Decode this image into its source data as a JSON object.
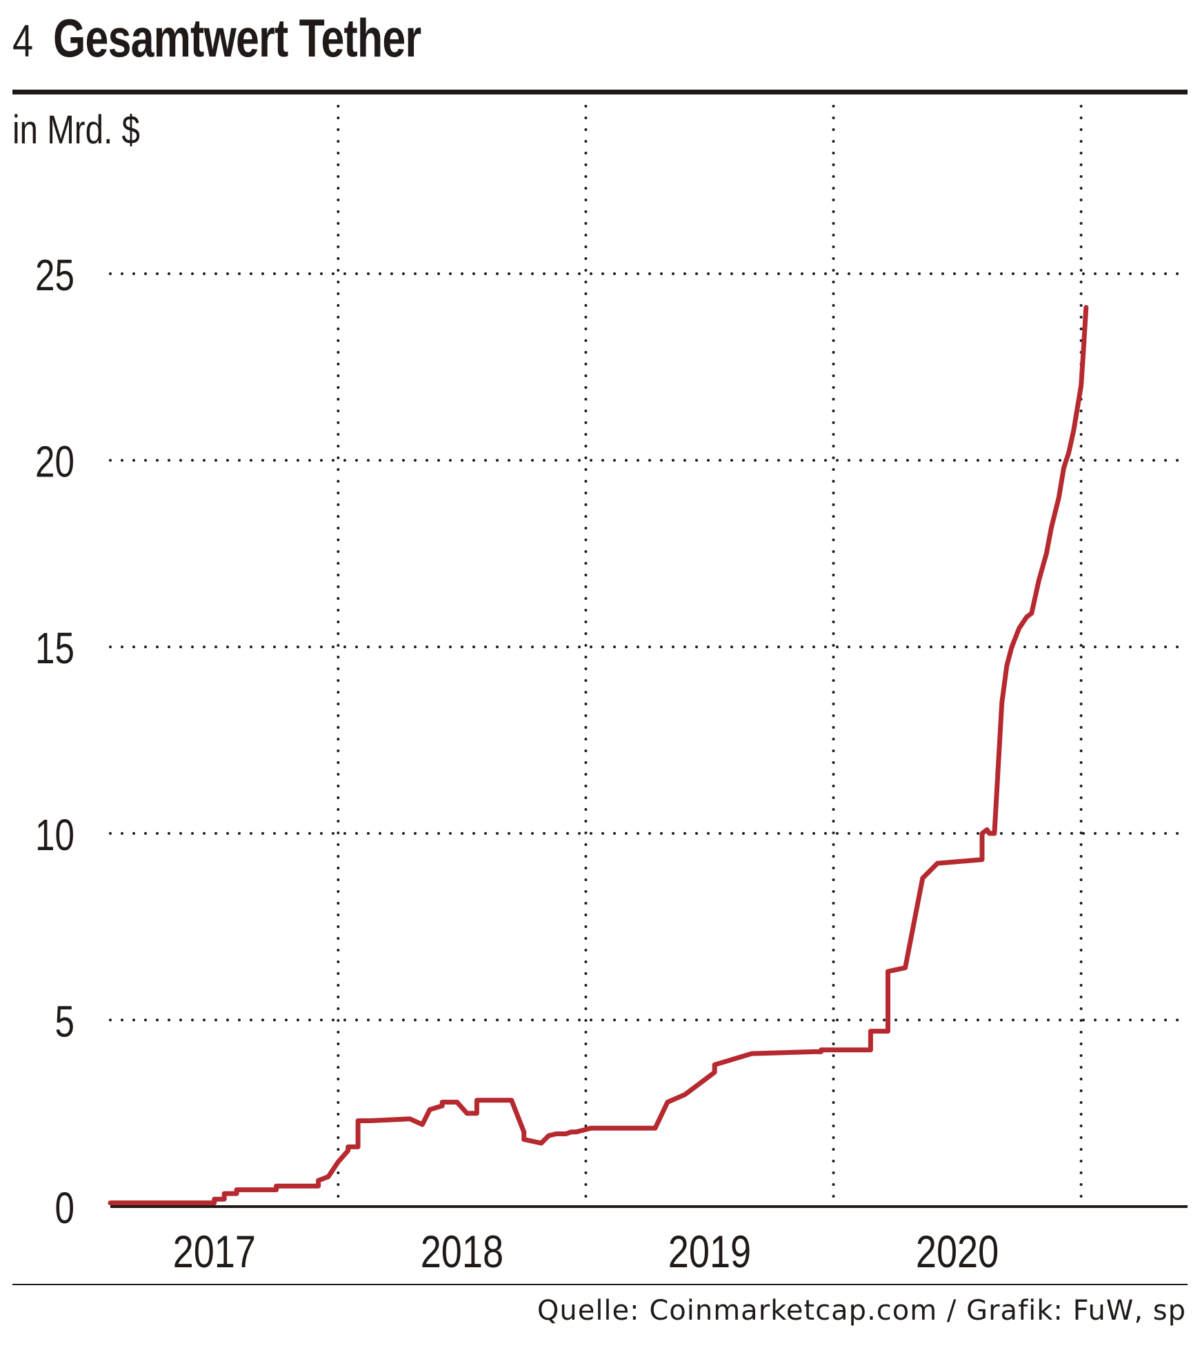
{
  "header": {
    "figure_number": "4",
    "title": "Gesamtwert Tether"
  },
  "footer": {
    "source": "Quelle: Coinmarketcap.com / Grafik: FuW, sp"
  },
  "colors": {
    "line": "#b5292f",
    "text": "#1f1a17",
    "grid": "#1f1a17"
  },
  "chart_data": {
    "type": "line",
    "title": "Gesamtwert Tether",
    "ylabel": "in Mrd. $",
    "xlabel": "",
    "ylim": [
      0,
      25
    ],
    "yticks": [
      0,
      5,
      10,
      15,
      20,
      25
    ],
    "xlim": [
      2016.58,
      2020.93
    ],
    "xticks": [
      {
        "label": "2017",
        "value": 2017.0
      },
      {
        "label": "2018",
        "value": 2018.0
      },
      {
        "label": "2019",
        "value": 2019.0
      },
      {
        "label": "2020",
        "value": 2020.0
      }
    ],
    "grid": {
      "vertical_at": [
        2017.5,
        2018.5,
        2019.5,
        2020.5
      ],
      "horizontal": true,
      "style": "dotted"
    },
    "series": [
      {
        "x": [
          2016.58,
          2017.0,
          2017.0,
          2017.04,
          2017.04,
          2017.09,
          2017.09,
          2017.25,
          2017.25,
          2017.42,
          2017.42,
          2017.46,
          2017.5,
          2017.54,
          2017.54,
          2017.58,
          2017.58,
          2017.63,
          2017.63,
          2017.79,
          2017.79,
          2017.84,
          2017.87,
          2017.92,
          2017.92,
          2017.98,
          2018.02,
          2018.06,
          2018.06,
          2018.13,
          2018.13,
          2018.2,
          2018.2,
          2018.25,
          2018.25,
          2018.32,
          2018.35,
          2018.38,
          2018.42,
          2018.44,
          2018.46,
          2018.49,
          2018.52,
          2018.57,
          2018.57,
          2018.78,
          2018.83,
          2018.9,
          2018.96,
          2019.02,
          2019.02,
          2019.17,
          2019.17,
          2019.42,
          2019.45,
          2019.45,
          2019.6,
          2019.62,
          2019.65,
          2019.65,
          2019.69,
          2019.72,
          2019.72,
          2019.79,
          2019.79,
          2019.86,
          2019.86,
          2019.92,
          2019.92,
          2020.1,
          2020.1,
          2020.12,
          2020.13,
          2020.15,
          2020.18,
          2020.2,
          2020.22,
          2020.25,
          2020.28,
          2020.3,
          2020.33,
          2020.36,
          2020.38,
          2020.41,
          2020.43,
          2020.45,
          2020.47,
          2020.48,
          2020.5,
          2020.51,
          2020.52
        ],
        "y": [
          0.1,
          0.1,
          0.2,
          0.2,
          0.35,
          0.35,
          0.45,
          0.45,
          0.55,
          0.55,
          0.7,
          0.8,
          1.2,
          1.5,
          1.6,
          1.6,
          2.3,
          2.3,
          2.3,
          2.35,
          2.35,
          2.2,
          2.6,
          2.7,
          2.8,
          2.8,
          2.5,
          2.5,
          2.85,
          2.85,
          2.85,
          2.85,
          2.85,
          2.0,
          1.8,
          1.7,
          1.9,
          1.95,
          1.95,
          2.0,
          2.0,
          2.05,
          2.1,
          2.1,
          2.1,
          2.1,
          2.8,
          3.0,
          3.3,
          3.6,
          3.8,
          4.1,
          4.1,
          4.15,
          4.15,
          4.2,
          4.2,
          4.2,
          4.2,
          4.7,
          4.7,
          4.7,
          6.3,
          6.4,
          6.4,
          8.8,
          8.8,
          9.2,
          9.2,
          9.3,
          10.0,
          10.1,
          10.0,
          10.0,
          13.5,
          14.5,
          15.0,
          15.5,
          15.8,
          15.9,
          16.8,
          17.5,
          18.2,
          19.0,
          19.8,
          20.2,
          20.8,
          21.2,
          22.0,
          23.0,
          24.1
        ]
      }
    ]
  }
}
